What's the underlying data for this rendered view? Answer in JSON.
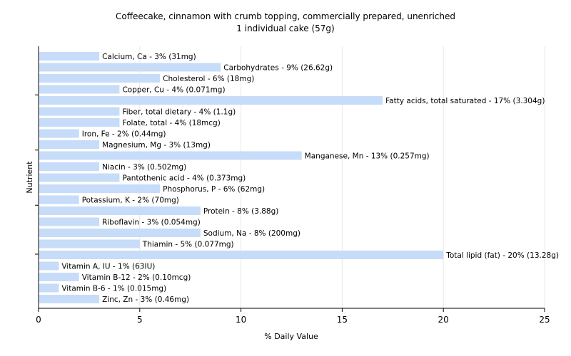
{
  "chart_data": {
    "type": "bar",
    "orientation": "horizontal",
    "title": "Coffeecake, cinnamon with crumb topping, commercially prepared, unenriched",
    "subtitle": "1 individual cake (57g)",
    "xlabel": "% Daily Value",
    "ylabel": "Nutrient",
    "xlim": [
      0,
      25
    ],
    "xticks": [
      0,
      5,
      10,
      15,
      20,
      25
    ],
    "grid": true,
    "bar_color": "#c6dcf8",
    "categories": [
      "Calcium, Ca",
      "Carbohydrates",
      "Cholesterol",
      "Copper, Cu",
      "Fatty acids, total saturated",
      "Fiber, total dietary",
      "Folate, total",
      "Iron, Fe",
      "Magnesium, Mg",
      "Manganese, Mn",
      "Niacin",
      "Pantothenic acid",
      "Phosphorus, P",
      "Potassium, K",
      "Protein",
      "Riboflavin",
      "Sodium, Na",
      "Thiamin",
      "Total lipid (fat)",
      "Vitamin A, IU",
      "Vitamin B-12",
      "Vitamin B-6",
      "Zinc, Zn"
    ],
    "values": [
      3,
      9,
      6,
      4,
      17,
      4,
      4,
      2,
      3,
      13,
      3,
      4,
      6,
      2,
      8,
      3,
      8,
      5,
      20,
      1,
      2,
      1,
      3
    ],
    "labels": [
      "Calcium, Ca - 3% (31mg)",
      "Carbohydrates - 9% (26.62g)",
      "Cholesterol - 6% (18mg)",
      "Copper, Cu - 4% (0.071mg)",
      "Fatty acids, total saturated - 17% (3.304g)",
      "Fiber, total dietary - 4% (1.1g)",
      "Folate, total - 4% (18mcg)",
      "Iron, Fe - 2% (0.44mg)",
      "Magnesium, Mg - 3% (13mg)",
      "Manganese, Mn - 13% (0.257mg)",
      "Niacin - 3% (0.502mg)",
      "Pantothenic acid - 4% (0.373mg)",
      "Phosphorus, P - 6% (62mg)",
      "Potassium, K - 2% (70mg)",
      "Protein - 8% (3.88g)",
      "Riboflavin - 3% (0.054mg)",
      "Sodium, Na - 8% (200mg)",
      "Thiamin - 5% (0.077mg)",
      "Total lipid (fat) - 20% (13.28g)",
      "Vitamin A, IU - 1% (63IU)",
      "Vitamin B-12 - 2% (0.10mcg)",
      "Vitamin B-6 - 1% (0.015mg)",
      "Zinc, Zn - 3% (0.46mg)"
    ]
  }
}
